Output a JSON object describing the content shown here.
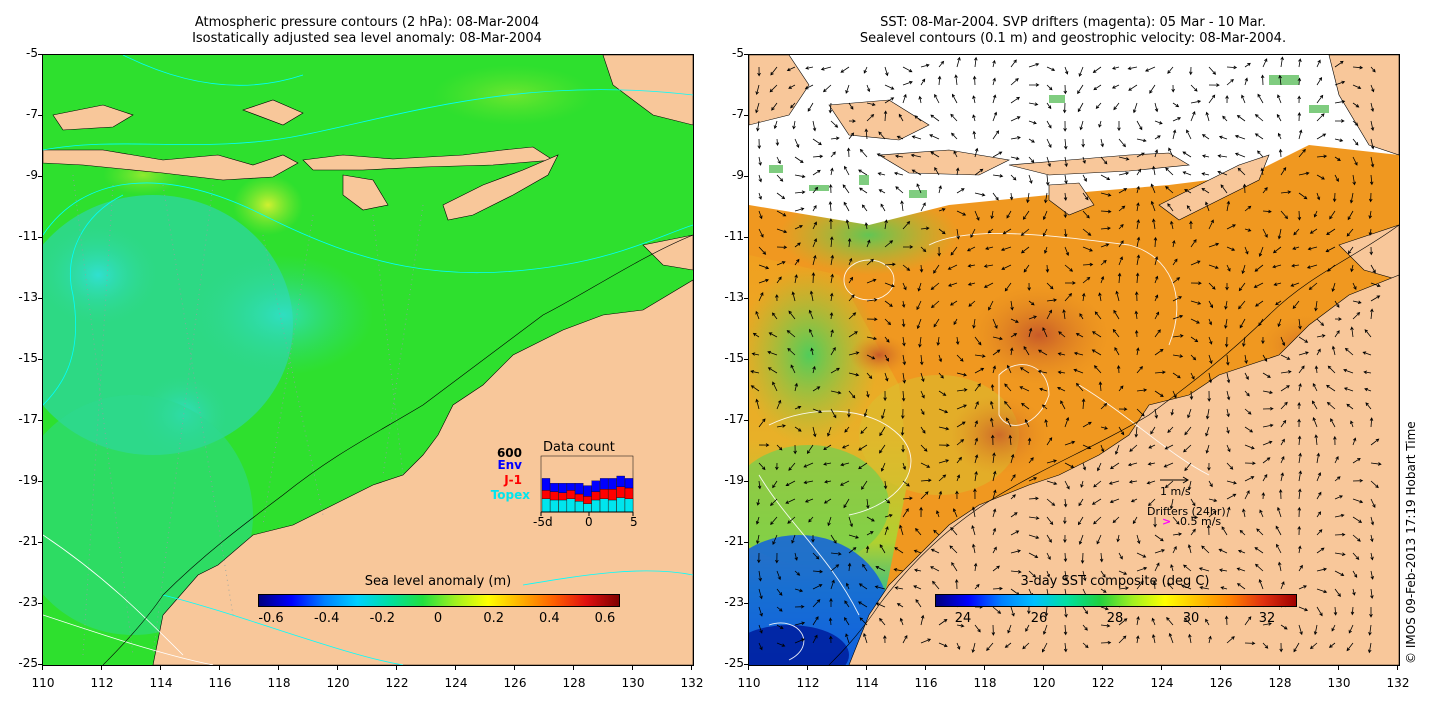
{
  "left_panel": {
    "title_line1": "Atmospheric pressure contours (2 hPa): 08-Mar-2004",
    "title_line2": "Isostatically adjusted sea level anomaly: 08-Mar-2004",
    "colorbar": {
      "title": "Sea level anomaly (m)",
      "ticks": [
        "-0.6",
        "-0.4",
        "-0.2",
        "0",
        "0.2",
        "0.4",
        "0.6"
      ]
    },
    "data_count": {
      "title": "Data count",
      "max_label": "600",
      "sat_labels": {
        "env": "Env",
        "j1": "J-1",
        "topex": "Topex"
      },
      "x_ticks": [
        "-5d",
        "0",
        "5"
      ],
      "colors": {
        "env": "#0000ff",
        "j1": "#ff0000",
        "topex": "#00e5ee"
      }
    }
  },
  "right_panel": {
    "title_line1": "SST: 08-Mar-2004. SVP drifters (magenta): 05 Mar - 10 Mar.",
    "title_line2": "Sealevel contours (0.1 m) and geostrophic velocity: 08-Mar-2004.",
    "colorbar": {
      "title": "3-day SST composite (deg C)",
      "ticks": [
        "24",
        "26",
        "28",
        "30",
        "32"
      ]
    },
    "legend": {
      "velocity_scale": "1 m/s",
      "drifters_title": "Drifters (24hr)",
      "drifter_scale": "0.5 m/s",
      "drifter_glyph": ">"
    }
  },
  "axes": {
    "lat_ticks": [
      "-5",
      "-7",
      "-9",
      "-11",
      "-13",
      "-15",
      "-17",
      "-19",
      "-21",
      "-23",
      "-25"
    ],
    "lon_ticks": [
      "110",
      "112",
      "114",
      "116",
      "118",
      "120",
      "122",
      "124",
      "126",
      "128",
      "130",
      "132"
    ]
  },
  "copyright": "© IMOS 09-Feb-2013 17:19 Hobart Time",
  "colors": {
    "land": "#f8c79a",
    "ocean_green": "#2ee02e",
    "ocean_cyan": "#30d8b0",
    "sst_orange": "#f09a20",
    "sst_red": "#c8602a",
    "sst_blue": "#1a70e0"
  }
}
